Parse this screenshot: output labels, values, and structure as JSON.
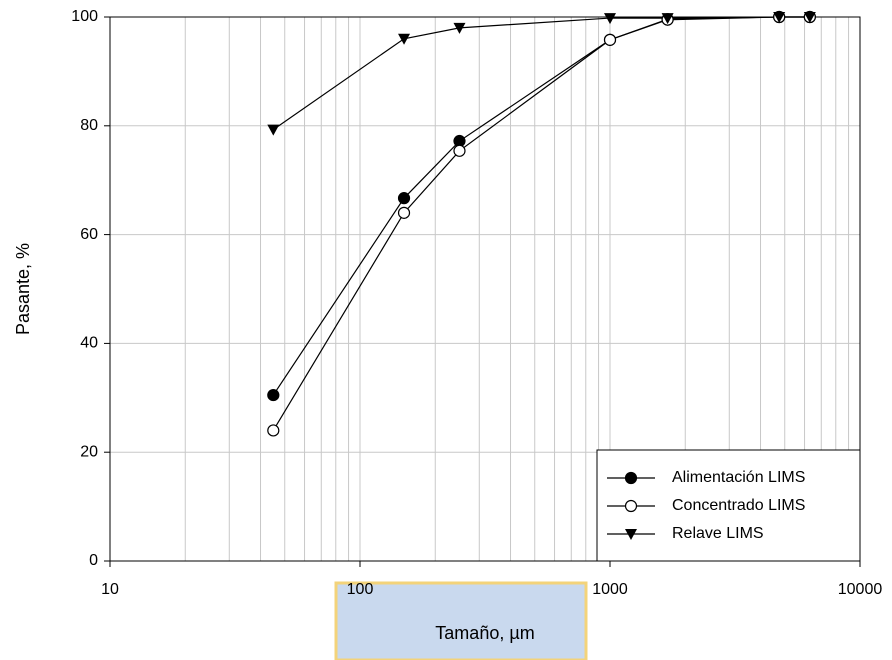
{
  "chart_data": {
    "type": "line",
    "x_label": "Tamaño, µm",
    "y_label": "Pasante, %",
    "x": [
      45,
      150,
      250,
      1000,
      1700,
      4750,
      6300
    ],
    "series": [
      {
        "name": "Alimentación LIMS",
        "color": "#000000",
        "marker": "circle",
        "values": [
          30.5,
          66.7,
          77.2,
          95.8,
          99.6,
          100,
          100
        ]
      },
      {
        "name": "Concentrado LIMS",
        "color": "#000000",
        "marker": "circle-open",
        "values": [
          24,
          64,
          75.4,
          95.8,
          99.5,
          100,
          100
        ]
      },
      {
        "name": "Relave LIMS",
        "color": "#000000",
        "marker": "triangle-down",
        "values": [
          79.3,
          96,
          98,
          99.8,
          99.8,
          100,
          100
        ]
      }
    ],
    "xlim": [
      10,
      10000
    ],
    "xticks": [
      10,
      100,
      1000,
      10000
    ],
    "x_log": true,
    "ylim": [
      0,
      100
    ],
    "yticks": [
      0,
      20,
      40,
      60,
      80,
      100
    ],
    "grid": true,
    "legend": "lower right"
  }
}
